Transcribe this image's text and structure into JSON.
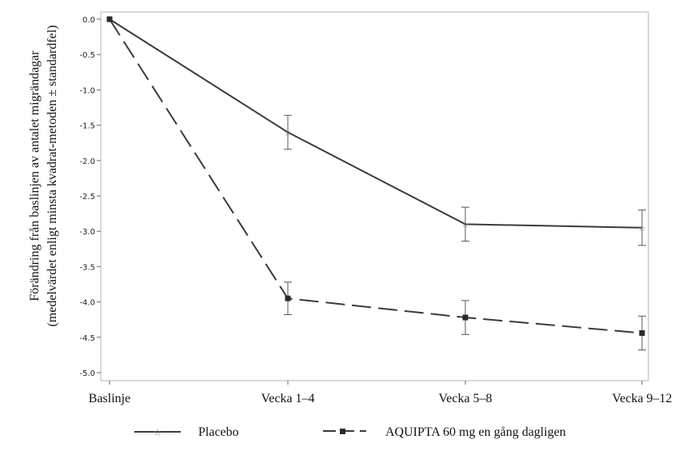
{
  "chart_data": {
    "type": "line",
    "title": "",
    "categories": [
      "Baslinje",
      "Vecka 1–4",
      "Vecka 5–8",
      "Vecka 9–12"
    ],
    "ylabel_line1": "Förändring från baslinjen av antalet migrändagar",
    "ylabel_line2": "(medelvärdet enligt minsta kvadrat-metoden ± standardfel)",
    "ylim": [
      -5.0,
      0.0
    ],
    "yticks": [
      "0.0",
      "-0.5",
      "-1.0",
      "-1.5",
      "-2.0",
      "-2.5",
      "-3.0",
      "-3.5",
      "-4.0",
      "-4.5",
      "-5.0"
    ],
    "ytick_values": [
      0.0,
      -0.5,
      -1.0,
      -1.5,
      -2.0,
      -2.5,
      -3.0,
      -3.5,
      -4.0,
      -4.5,
      -5.0
    ],
    "grid": false,
    "legend_position": "bottom",
    "series": [
      {
        "name": "Placebo",
        "values": [
          0.0,
          -1.6,
          -2.9,
          -2.95
        ],
        "error": [
          0.0,
          0.24,
          0.24,
          0.25
        ],
        "color": "#3a3a3a",
        "line_style": "solid",
        "marker": "star"
      },
      {
        "name": "AQUIPTA 60 mg en gång dagligen",
        "values": [
          0.0,
          -3.95,
          -4.22,
          -4.44
        ],
        "error": [
          0.0,
          0.23,
          0.24,
          0.24
        ],
        "color": "#3a3a3a",
        "line_style": "dashed",
        "marker": "square"
      }
    ]
  }
}
